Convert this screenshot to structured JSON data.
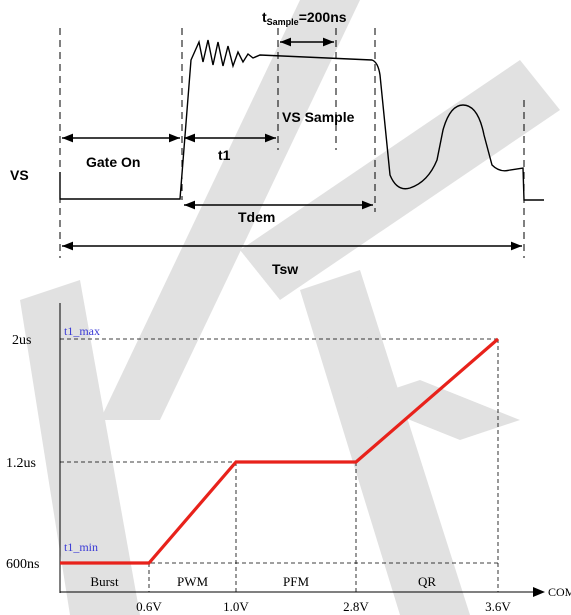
{
  "timing": {
    "vs_label": "VS",
    "gate_on_label": "Gate On",
    "t1_label": "t1",
    "tdem_label": "Tdem",
    "tsw_label": "Tsw",
    "vs_sample_label": "VS Sample",
    "tsample_prefix": "t",
    "tsample_sub": "Sample",
    "tsample_value": "=200ns"
  },
  "chart_data": {
    "type": "line",
    "x_axis_label": "COMP",
    "x_ticks": [
      "0.6V",
      "1.0V",
      "2.8V",
      "3.6V"
    ],
    "y_ticks": [
      "600ns",
      "1.2us",
      "2us"
    ],
    "x": [
      0.0,
      0.6,
      1.0,
      2.8,
      3.6
    ],
    "y_us": [
      0.6,
      0.6,
      1.2,
      1.2,
      2.0
    ],
    "line_color": "#e8221b",
    "regions": [
      "Burst",
      "PWM",
      "PFM",
      "QR"
    ],
    "ref_labels": {
      "max": "t1_max",
      "min": "t1_min"
    },
    "ref_color": "#3a3ad6"
  },
  "watermark": {
    "color": "#d8d8d8"
  }
}
